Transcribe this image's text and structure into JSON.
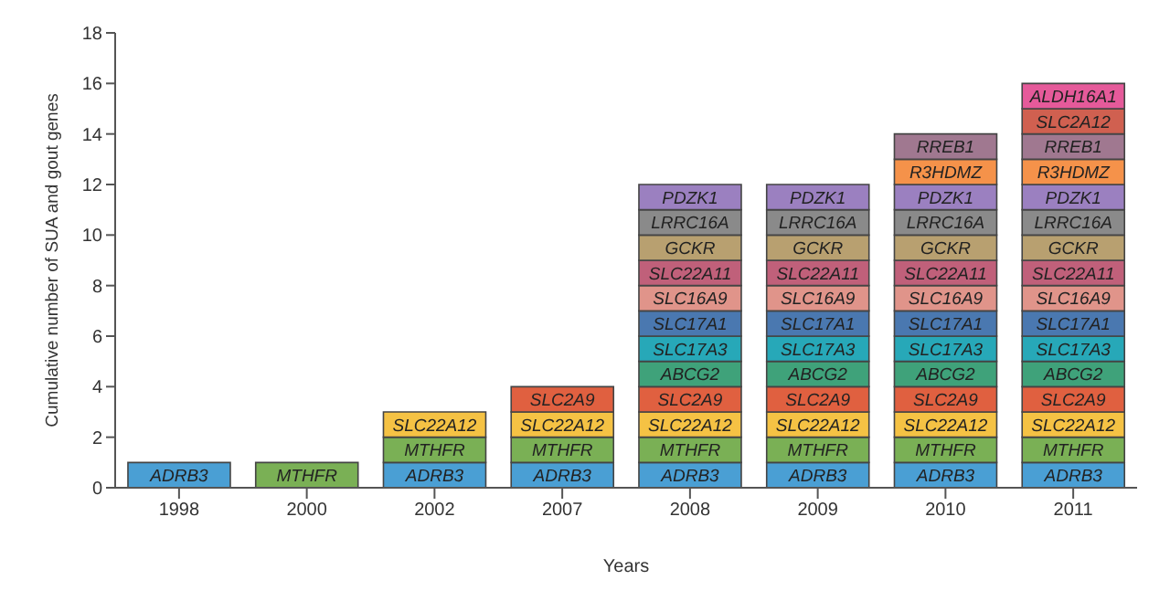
{
  "chart_data": {
    "type": "bar",
    "stacked": true,
    "xlabel": "Years",
    "ylabel": "Cumulative number of SUA and gout genes",
    "categories": [
      "1998",
      "2000",
      "2002",
      "2007",
      "2008",
      "2009",
      "2010",
      "2011"
    ],
    "ylim": [
      0,
      18
    ],
    "yticks": [
      0,
      2,
      4,
      6,
      8,
      10,
      12,
      14,
      16,
      18
    ],
    "grid": false,
    "legend": false,
    "series": [
      {
        "name": "ADRB3",
        "color": "#4a9fd4",
        "values": [
          1,
          null,
          1,
          1,
          1,
          1,
          1,
          1
        ]
      },
      {
        "name": "MTHFR",
        "color": "#7ab055",
        "values": [
          null,
          1,
          1,
          1,
          1,
          1,
          1,
          1
        ]
      },
      {
        "name": "SLC22A12",
        "color": "#f5c244",
        "values": [
          null,
          null,
          1,
          1,
          1,
          1,
          1,
          1
        ]
      },
      {
        "name": "SLC2A9",
        "color": "#e06040",
        "values": [
          null,
          null,
          null,
          1,
          1,
          1,
          1,
          1
        ]
      },
      {
        "name": "ABCG2",
        "color": "#3fa27a",
        "values": [
          null,
          null,
          null,
          null,
          1,
          1,
          1,
          1
        ]
      },
      {
        "name": "SLC17A3",
        "color": "#27a8b8",
        "values": [
          null,
          null,
          null,
          null,
          1,
          1,
          1,
          1
        ]
      },
      {
        "name": "SLC17A1",
        "color": "#4a78b0",
        "values": [
          null,
          null,
          null,
          null,
          1,
          1,
          1,
          1
        ]
      },
      {
        "name": "SLC16A9",
        "color": "#e0948a",
        "values": [
          null,
          null,
          null,
          null,
          1,
          1,
          1,
          1
        ]
      },
      {
        "name": "SLC22A11",
        "color": "#c0607a",
        "values": [
          null,
          null,
          null,
          null,
          1,
          1,
          1,
          1
        ]
      },
      {
        "name": "GCKR",
        "color": "#b8a070",
        "values": [
          null,
          null,
          null,
          null,
          1,
          1,
          1,
          1
        ]
      },
      {
        "name": "LRRC16A",
        "color": "#8a8a8a",
        "values": [
          null,
          null,
          null,
          null,
          1,
          1,
          1,
          1
        ]
      },
      {
        "name": "PDZK1",
        "color": "#9b80c0",
        "values": [
          null,
          null,
          null,
          null,
          1,
          1,
          1,
          1
        ]
      },
      {
        "name": "R3HDMZ",
        "color": "#f5924a",
        "values": [
          null,
          null,
          null,
          null,
          null,
          null,
          1,
          1
        ]
      },
      {
        "name": "RREB1",
        "color": "#a07890",
        "values": [
          null,
          null,
          null,
          null,
          null,
          null,
          1,
          1
        ]
      },
      {
        "name": "SLC2A12",
        "color": "#d06050",
        "values": [
          null,
          null,
          null,
          null,
          null,
          null,
          null,
          1
        ]
      },
      {
        "name": "ALDH16A1",
        "color": "#e55a9a",
        "values": [
          null,
          null,
          null,
          null,
          null,
          null,
          null,
          1
        ]
      }
    ]
  }
}
